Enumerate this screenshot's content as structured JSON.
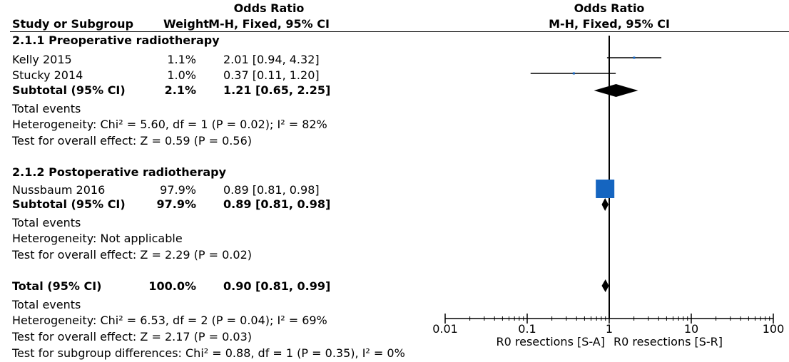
{
  "header": {
    "col_study": "Study or Subgroup",
    "col_weight": "Weight",
    "or_title": "Odds Ratio",
    "or_method": "M-H, Fixed, 95% CI",
    "plot_title": "Odds Ratio",
    "plot_method": "M-H, Fixed, 95% CI"
  },
  "rows": [
    {
      "id": "sg1-heading",
      "label": "2.1.1 Preoperative radiotherapy",
      "bold": true
    },
    {
      "id": "kelly",
      "label": "Kelly 2015",
      "weight": "1.1%",
      "ci": "2.01 [0.94, 4.32]"
    },
    {
      "id": "stucky",
      "label": "Stucky 2014",
      "weight": "1.0%",
      "ci": "0.37 [0.11, 1.20]"
    },
    {
      "id": "sg1-subtotal",
      "label": "Subtotal (95% CI)",
      "weight": "2.1%",
      "ci": "1.21 [0.65, 2.25]",
      "bold": true
    },
    {
      "id": "sg1-events",
      "label": "Total events"
    },
    {
      "id": "sg1-het",
      "label": "Heterogeneity: Chi² = 5.60, df = 1 (P = 0.02); I² = 82%"
    },
    {
      "id": "sg1-effect",
      "label": "Test for overall effect: Z = 0.59 (P = 0.56)"
    },
    {
      "id": "sg2-heading",
      "label": "2.1.2 Postoperative radiotherapy",
      "bold": true
    },
    {
      "id": "nussbaum",
      "label": "Nussbaum 2016",
      "weight": "97.9%",
      "ci": "0.89 [0.81, 0.98]"
    },
    {
      "id": "sg2-subtotal",
      "label": "Subtotal (95% CI)",
      "weight": "97.9%",
      "ci": "0.89 [0.81, 0.98]",
      "bold": true
    },
    {
      "id": "sg2-events",
      "label": "Total events"
    },
    {
      "id": "sg2-het",
      "label": "Heterogeneity: Not applicable"
    },
    {
      "id": "sg2-effect",
      "label": "Test for overall effect: Z = 2.29 (P = 0.02)"
    },
    {
      "id": "total",
      "label": "Total (95% CI)",
      "weight": "100.0%",
      "ci": "0.90 [0.81, 0.99]",
      "bold": true
    },
    {
      "id": "total-events",
      "label": "Total events"
    },
    {
      "id": "total-het",
      "label": "Heterogeneity: Chi² = 6.53, df = 2 (P = 0.04); I² = 69%"
    },
    {
      "id": "total-effect",
      "label": "Test for overall effect: Z = 2.17 (P = 0.03)"
    },
    {
      "id": "subgroup-diff",
      "label": "Test for subgroup differences: Chi² = 0.88, df = 1 (P = 0.35), I² = 0%"
    }
  ],
  "chart_data": {
    "type": "forest",
    "x_scale": "log",
    "xlim": [
      0.01,
      100
    ],
    "x_ticks": [
      0.01,
      0.1,
      1,
      10,
      100
    ],
    "x_tick_labels": [
      "0.01",
      "0.1",
      "1",
      "10",
      "100"
    ],
    "null_line": 1,
    "favours_left": "R0 resections [S-A]",
    "favours_right": "R0 resections [S-R]",
    "colors": {
      "study_box": "#1565c0",
      "diamond": "#000000",
      "lines": "#000000"
    },
    "studies": [
      {
        "name": "Kelly 2015",
        "or": 2.01,
        "lo": 0.94,
        "hi": 4.32,
        "weight": 1.1
      },
      {
        "name": "Stucky 2014",
        "or": 0.37,
        "lo": 0.11,
        "hi": 1.2,
        "weight": 1.0
      },
      {
        "name": "Nussbaum 2016",
        "or": 0.89,
        "lo": 0.81,
        "hi": 0.98,
        "weight": 97.9
      }
    ],
    "pooled": [
      {
        "name": "Subtotal (95% CI) 2.1.1",
        "or": 1.21,
        "lo": 0.65,
        "hi": 2.25
      },
      {
        "name": "Subtotal (95% CI) 2.1.2",
        "or": 0.89,
        "lo": 0.81,
        "hi": 0.98
      },
      {
        "name": "Total (95% CI)",
        "or": 0.9,
        "lo": 0.81,
        "hi": 0.99
      }
    ]
  }
}
